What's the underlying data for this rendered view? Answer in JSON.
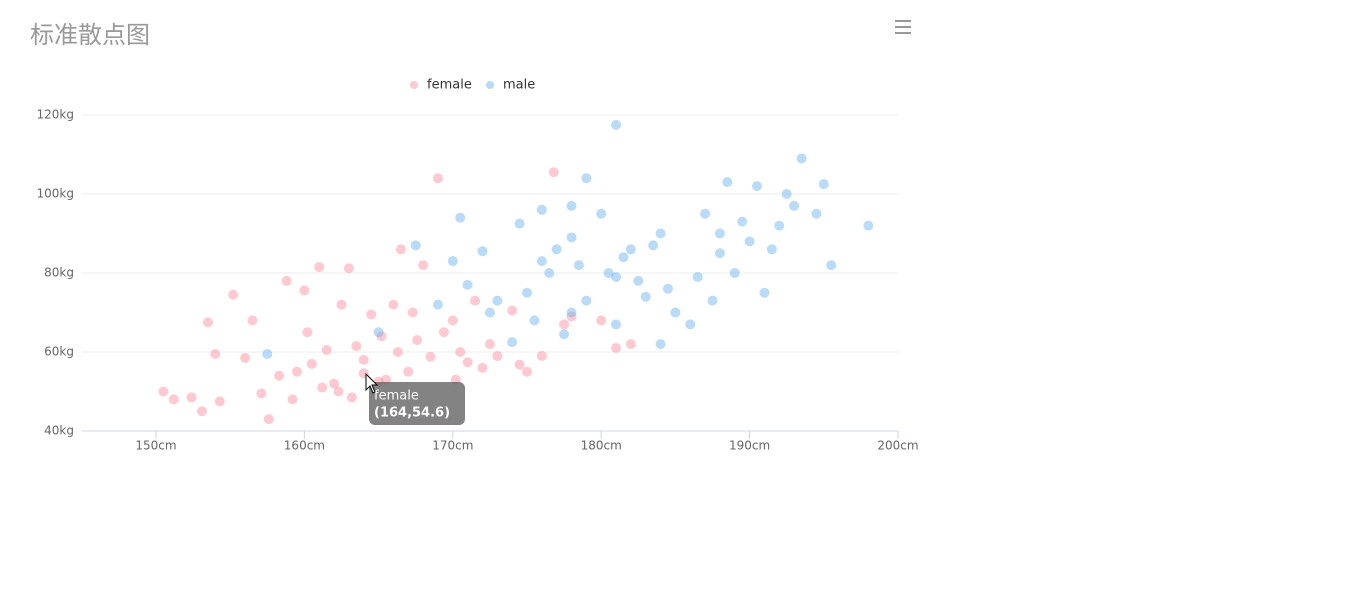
{
  "chart_data": {
    "type": "scatter",
    "title": "标准散点图",
    "xlim": [
      145,
      200
    ],
    "xticks": [
      {
        "value": 150,
        "label": "150cm"
      },
      {
        "value": 160,
        "label": "160cm"
      },
      {
        "value": 170,
        "label": "170cm"
      },
      {
        "value": 180,
        "label": "180cm"
      },
      {
        "value": 190,
        "label": "190cm"
      },
      {
        "value": 200,
        "label": "200cm"
      }
    ],
    "ylim": [
      40,
      120
    ],
    "yticks": [
      {
        "value": 40,
        "label": "40kg"
      },
      {
        "value": 60,
        "label": "60kg"
      },
      {
        "value": 80,
        "label": "80kg"
      },
      {
        "value": 100,
        "label": "100kg"
      },
      {
        "value": 120,
        "label": "120kg"
      }
    ],
    "grid": true,
    "legend": "top",
    "series": [
      {
        "name": "female",
        "color": "rgba(255,120,140,0.4)",
        "x": [
          150.5,
          151.2,
          152.4,
          153.1,
          153.5,
          154.0,
          154.3,
          155.2,
          156.0,
          156.5,
          157.1,
          157.6,
          158.3,
          158.8,
          159.2,
          159.5,
          160.0,
          160.2,
          160.5,
          161.0,
          161.2,
          161.5,
          162.0,
          162.3,
          162.5,
          163.0,
          163.2,
          163.5,
          164.0,
          164.0,
          164.5,
          165.0,
          165.2,
          165.5,
          166.0,
          166.3,
          166.5,
          167.0,
          167.3,
          167.6,
          168.0,
          168.5,
          169.0,
          169.4,
          170.0,
          170.2,
          170.5,
          171.0,
          171.5,
          172.0,
          172.5,
          173.0,
          174.0,
          174.5,
          175.0,
          176.0,
          176.8,
          177.5,
          178.0,
          180.0,
          181.0,
          182.0
        ],
        "values": [
          50,
          48,
          48.5,
          45,
          67.5,
          59.5,
          47.5,
          74.5,
          58.5,
          68,
          49.5,
          43,
          54,
          78,
          48,
          55,
          75.6,
          65,
          57,
          81.5,
          51,
          60.5,
          52,
          50,
          72,
          81.2,
          48.5,
          61.5,
          54.6,
          58,
          69.5,
          52.5,
          64,
          53,
          72,
          60,
          86,
          55,
          70,
          63,
          82,
          58.8,
          104,
          65,
          68,
          53,
          60,
          57.4,
          73,
          56,
          62,
          59,
          70.5,
          56.8,
          55,
          59,
          105.5,
          67,
          69,
          68,
          61,
          62
        ]
      },
      {
        "name": "male",
        "color": "rgba(100,175,240,0.45)",
        "x": [
          157.5,
          165.0,
          167.5,
          169.0,
          170.0,
          170.5,
          171.0,
          172.0,
          172.5,
          173.0,
          174.0,
          174.5,
          175.0,
          175.5,
          176.0,
          176.5,
          177.0,
          177.5,
          178.0,
          178.0,
          178.5,
          179.0,
          179.0,
          180.0,
          180.5,
          181.0,
          181.0,
          181.5,
          182.0,
          182.5,
          183.0,
          183.5,
          184.0,
          184.5,
          185.0,
          186.0,
          186.5,
          187.0,
          187.5,
          188.0,
          188.0,
          188.5,
          189.0,
          189.5,
          190.0,
          190.5,
          191.0,
          191.5,
          192.0,
          192.5,
          193.0,
          193.5,
          194.5,
          195.0,
          195.5,
          198.0,
          181.0,
          178.0,
          184.0,
          176.0
        ],
        "values": [
          59.5,
          65,
          87,
          72,
          83,
          94,
          77,
          85.5,
          70,
          73,
          62.5,
          92.5,
          75,
          68,
          96,
          80,
          86,
          64.5,
          89,
          70,
          82,
          104,
          73,
          95,
          80,
          117.5,
          67,
          84,
          86,
          78,
          74,
          87,
          90,
          76,
          70,
          67,
          79,
          95,
          73,
          85,
          90,
          103,
          80,
          93,
          88,
          102,
          75,
          86,
          92,
          100,
          97,
          109,
          95,
          102.5,
          82,
          92,
          79,
          97,
          62,
          83
        ]
      }
    ],
    "tooltip": {
      "series": "female",
      "label": "(164,54.6)"
    }
  }
}
